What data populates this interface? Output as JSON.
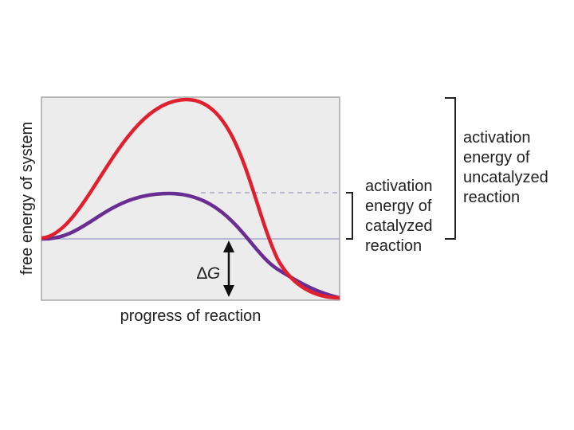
{
  "axes": {
    "y_label": "free energy of system",
    "x_label": "progress of reaction"
  },
  "curves": {
    "uncatalyzed": {
      "name": "uncatalyzed reaction",
      "color": "#e0202f"
    },
    "catalyzed": {
      "name": "catalyzed reaction",
      "color": "#6a2d91"
    }
  },
  "colors": {
    "plot_bg": "#ececec",
    "plot_border": "#a8a8a8",
    "reference_line": "#9a9ac8",
    "bracket": "#222222"
  },
  "annotations": {
    "delta_g": {
      "symbol": "∆",
      "variable": "G"
    },
    "catalyzed_label": [
      "activation",
      "energy of",
      "catalyzed",
      "reaction"
    ],
    "uncatalyzed_label": [
      "activation",
      "energy of",
      "uncatalyzed",
      "reaction"
    ]
  }
}
